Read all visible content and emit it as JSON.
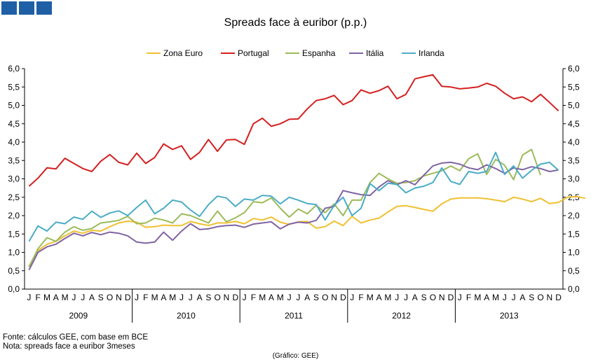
{
  "decoration": {
    "box_color": "#1f5fa6"
  },
  "footnotes": {
    "source": "Fonte: cálculos GEE, com base em BCE",
    "note": "Nota: spreads face a euribor 3meses",
    "credit": "(Gráfico: GEE)"
  },
  "chart_data": {
    "type": "line",
    "title": "Spreads face à euribor (p.p.)",
    "xlabel": "",
    "ylabel": "",
    "ylim": [
      0,
      6
    ],
    "y_ticks": [
      "0,0",
      "0,5",
      "1,0",
      "1,5",
      "2,0",
      "2,5",
      "3,0",
      "3,5",
      "4,0",
      "4,5",
      "5,0",
      "5,5",
      "6,0"
    ],
    "grid": false,
    "legend_position": "top",
    "months": [
      "J",
      "F",
      "M",
      "A",
      "M",
      "J",
      "J",
      "A",
      "S",
      "O",
      "N",
      "D"
    ],
    "years": [
      "2009",
      "2010",
      "2011",
      "2012",
      "2013"
    ],
    "series": [
      {
        "name": "Zona Euro",
        "color": "#f0c030",
        "values": [
          0.62,
          1.05,
          1.22,
          1.3,
          1.45,
          1.58,
          1.52,
          1.6,
          1.58,
          1.7,
          1.8,
          1.85,
          1.82,
          1.68,
          1.7,
          1.74,
          1.73,
          1.73,
          1.84,
          1.78,
          1.73,
          1.8,
          1.8,
          1.84,
          1.78,
          1.92,
          1.88,
          1.96,
          1.82,
          1.76,
          1.83,
          1.84,
          1.66,
          1.7,
          1.85,
          1.73,
          1.98,
          1.8,
          1.88,
          1.93,
          2.1,
          2.25,
          2.27,
          2.22,
          2.17,
          2.12,
          2.32,
          2.45,
          2.48,
          2.48,
          2.48,
          2.46,
          2.42,
          2.38,
          2.5,
          2.45,
          2.38,
          2.47,
          2.33,
          2.36,
          2.5,
          2.52,
          2.47
        ]
      },
      {
        "name": "Portugal",
        "color": "#d42020",
        "values": [
          2.8,
          3.02,
          3.3,
          3.27,
          3.56,
          3.42,
          3.28,
          3.2,
          3.48,
          3.66,
          3.45,
          3.38,
          3.7,
          3.42,
          3.58,
          3.95,
          3.8,
          3.9,
          3.53,
          3.72,
          4.07,
          3.75,
          4.06,
          4.07,
          3.94,
          4.5,
          4.65,
          4.43,
          4.5,
          4.62,
          4.63,
          4.9,
          5.13,
          5.18,
          5.27,
          5.02,
          5.13,
          5.42,
          5.33,
          5.4,
          5.52,
          5.18,
          5.3,
          5.72,
          5.78,
          5.83,
          5.52,
          5.5,
          5.45,
          5.47,
          5.5,
          5.6,
          5.52,
          5.33,
          5.18,
          5.23,
          5.1,
          5.3,
          5.08,
          4.85
        ]
      },
      {
        "name": "Espanha",
        "color": "#9bbb59",
        "values": [
          0.6,
          1.1,
          1.4,
          1.3,
          1.55,
          1.7,
          1.6,
          1.65,
          1.8,
          1.83,
          1.87,
          1.98,
          1.78,
          1.8,
          1.93,
          1.88,
          1.8,
          2.05,
          2.0,
          1.9,
          1.8,
          2.12,
          1.83,
          1.94,
          2.08,
          2.38,
          2.35,
          2.48,
          2.2,
          1.96,
          2.18,
          2.05,
          2.28,
          2.08,
          2.32,
          2.0,
          2.42,
          2.42,
          2.9,
          3.15,
          3.0,
          2.88,
          2.9,
          2.95,
          3.08,
          3.15,
          3.22,
          3.35,
          3.22,
          3.55,
          3.68,
          3.12,
          3.53,
          3.37,
          2.98,
          3.65,
          3.8,
          3.1
        ]
      },
      {
        "name": "Itália",
        "color": "#8064a2",
        "values": [
          0.52,
          1.0,
          1.15,
          1.22,
          1.38,
          1.52,
          1.45,
          1.54,
          1.48,
          1.55,
          1.52,
          1.45,
          1.28,
          1.25,
          1.28,
          1.55,
          1.33,
          1.58,
          1.78,
          1.62,
          1.64,
          1.7,
          1.73,
          1.74,
          1.68,
          1.77,
          1.8,
          1.83,
          1.64,
          1.77,
          1.82,
          1.8,
          1.87,
          2.2,
          2.25,
          2.68,
          2.62,
          2.57,
          2.55,
          2.78,
          2.95,
          2.84,
          2.95,
          2.84,
          3.1,
          3.35,
          3.43,
          3.45,
          3.4,
          3.3,
          3.25,
          3.38,
          3.28,
          3.15,
          3.3,
          3.25,
          3.33,
          3.28,
          3.2,
          3.24
        ]
      },
      {
        "name": "Irlanda",
        "color": "#4bacc6",
        "values": [
          1.3,
          1.72,
          1.58,
          1.82,
          1.78,
          1.96,
          1.9,
          2.12,
          1.95,
          2.07,
          2.13,
          2.0,
          2.22,
          2.42,
          2.05,
          2.2,
          2.42,
          2.37,
          2.15,
          1.98,
          2.3,
          2.53,
          2.48,
          2.25,
          2.45,
          2.42,
          2.55,
          2.53,
          2.32,
          2.5,
          2.42,
          2.33,
          2.3,
          1.88,
          2.28,
          2.5,
          2.0,
          2.2,
          2.87,
          2.68,
          2.88,
          2.85,
          2.62,
          2.75,
          2.8,
          2.9,
          3.3,
          2.93,
          2.85,
          3.2,
          3.15,
          3.2,
          3.72,
          3.12,
          3.35,
          3.02,
          3.23,
          3.4,
          3.45,
          3.23
        ]
      }
    ]
  }
}
